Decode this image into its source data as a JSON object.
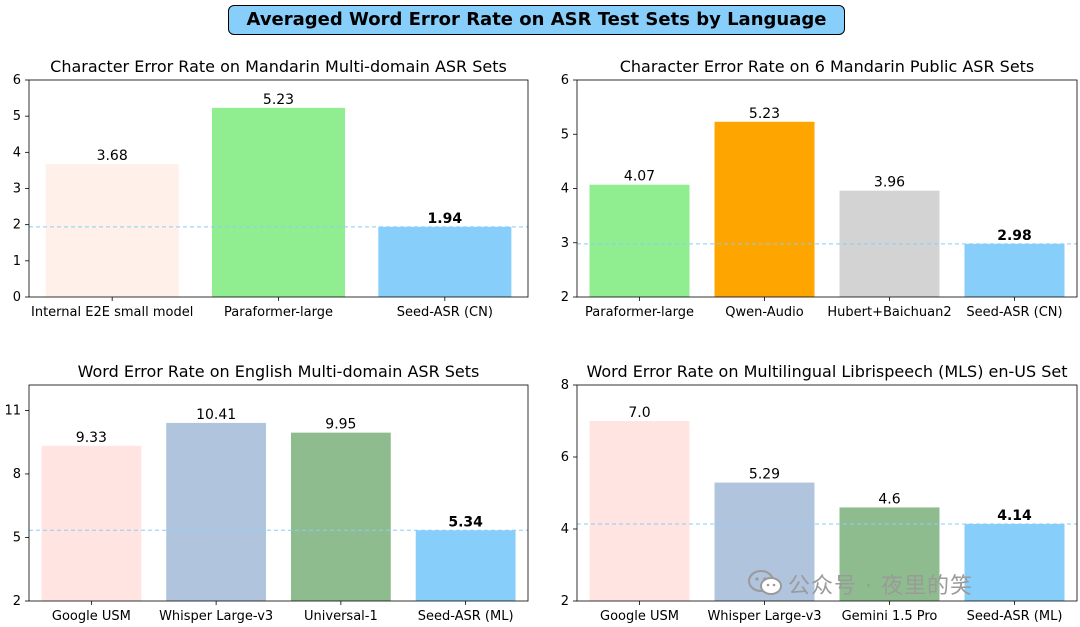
{
  "suptitle": "Averaged Word Error Rate on ASR Test Sets by Language",
  "watermark": "公众号 · 夜里的笑",
  "colors": {
    "reference_line": "#87cefa",
    "axis": "#000000"
  },
  "chart_data": [
    {
      "type": "bar",
      "title": "Character Error Rate on Mandarin Multi-domain ASR Sets",
      "categories": [
        "Internal E2E small model",
        "Paraformer-large",
        "Seed-ASR (CN)"
      ],
      "values": [
        3.68,
        5.23,
        1.94
      ],
      "value_labels": [
        "3.68",
        "5.23",
        "1.94"
      ],
      "colors": [
        "#fff1ea",
        "#90ee90",
        "#87cefa"
      ],
      "highlight_index": 2,
      "ylim": [
        0,
        6
      ],
      "yticks": [
        0,
        1,
        2,
        3,
        4,
        5,
        6
      ],
      "reference_line": 1.94
    },
    {
      "type": "bar",
      "title": "Character Error Rate on 6 Mandarin Public ASR Sets",
      "categories": [
        "Paraformer-large",
        "Qwen-Audio",
        "Hubert+Baichuan2",
        "Seed-ASR (CN)"
      ],
      "values": [
        4.07,
        5.23,
        3.96,
        2.98
      ],
      "value_labels": [
        "4.07",
        "5.23",
        "3.96",
        "2.98"
      ],
      "colors": [
        "#90ee90",
        "#ffa500",
        "#d3d3d3",
        "#87cefa"
      ],
      "highlight_index": 3,
      "ylim": [
        2,
        6
      ],
      "yticks": [
        2,
        3,
        4,
        5,
        6
      ],
      "reference_line": 2.98
    },
    {
      "type": "bar",
      "title": "Word Error Rate on English Multi-domain ASR Sets",
      "categories": [
        "Google USM",
        "Whisper Large-v3",
        "Universal-1",
        "Seed-ASR (ML)"
      ],
      "values": [
        9.33,
        10.41,
        9.95,
        5.34
      ],
      "value_labels": [
        "9.33",
        "10.41",
        "9.95",
        "5.34"
      ],
      "colors": [
        "#ffe4e1",
        "#b0c4de",
        "#8fbc8f",
        "#87cefa"
      ],
      "highlight_index": 3,
      "ylim": [
        2,
        12.2
      ],
      "yticks": [
        2,
        5,
        8,
        11
      ],
      "reference_line": 5.34
    },
    {
      "type": "bar",
      "title": "Word Error Rate on Multilingual Librispeech (MLS) en-US Set",
      "categories": [
        "Google USM",
        "Whisper Large-v3",
        "Gemini 1.5 Pro",
        "Seed-ASR (ML)"
      ],
      "values": [
        7.0,
        5.29,
        4.6,
        4.14
      ],
      "value_labels": [
        "7.0",
        "5.29",
        "4.6",
        "4.14"
      ],
      "colors": [
        "#ffe4e1",
        "#b0c4de",
        "#8fbc8f",
        "#87cefa"
      ],
      "highlight_index": 3,
      "ylim": [
        2,
        8
      ],
      "yticks": [
        2,
        4,
        6,
        8
      ],
      "reference_line": 4.14
    }
  ]
}
